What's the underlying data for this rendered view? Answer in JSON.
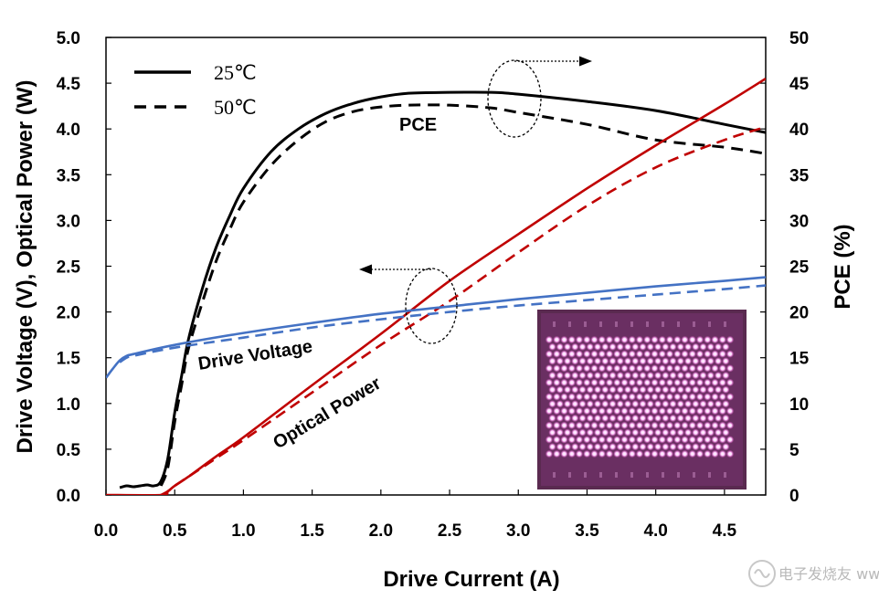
{
  "chart_data": {
    "type": "line",
    "xlabel": "Drive Current (A)",
    "ylabel_left": "Drive Voltage (V), Optical Power (W)",
    "ylabel_right": "PCE (%)",
    "xlim": [
      0,
      4.8
    ],
    "ylim_left": [
      0,
      5
    ],
    "ylim_right": [
      0,
      50
    ],
    "x_ticks": [
      "0.0",
      "0.5",
      "1.0",
      "1.5",
      "2.0",
      "2.5",
      "3.0",
      "3.5",
      "4.0",
      "4.5"
    ],
    "y_ticks_left": [
      "0.0",
      "0.5",
      "1.0",
      "1.5",
      "2.0",
      "2.5",
      "3.0",
      "3.5",
      "4.0",
      "4.5",
      "5.0"
    ],
    "y_ticks_right": [
      "0",
      "5",
      "10",
      "15",
      "20",
      "25",
      "30",
      "35",
      "40",
      "45",
      "50"
    ],
    "grid": false,
    "legend": [
      {
        "label": "25℃",
        "style": "solid"
      },
      {
        "label": "50℃",
        "style": "dashed"
      }
    ],
    "annotations": {
      "pce": "PCE",
      "voltage": "Drive Voltage",
      "power": "Optical Power"
    },
    "colors": {
      "pce": "#000000",
      "power": "#c00000",
      "voltage": "#4472c4"
    },
    "series": [
      {
        "quantity": "PCE",
        "temp": "25℃",
        "axis": "right",
        "style": "solid",
        "x": [
          0.1,
          0.15,
          0.2,
          0.25,
          0.3,
          0.35,
          0.4,
          0.45,
          0.5,
          0.55,
          0.6,
          0.7,
          0.8,
          0.9,
          1.0,
          1.2,
          1.4,
          1.6,
          1.8,
          2.0,
          2.2,
          2.5,
          2.8,
          3.0,
          3.5,
          4.0,
          4.5,
          4.8
        ],
        "y": [
          0.8,
          1.0,
          0.9,
          1.0,
          1.1,
          1.0,
          1.5,
          4.0,
          9.0,
          13.0,
          17.0,
          22.5,
          27.0,
          30.5,
          33.5,
          37.5,
          40.0,
          41.7,
          42.8,
          43.5,
          43.9,
          44.0,
          44.0,
          43.8,
          43.0,
          42.0,
          40.5,
          39.6
        ]
      },
      {
        "quantity": "PCE",
        "temp": "50℃",
        "axis": "right",
        "style": "dashed",
        "x": [
          0.4,
          0.45,
          0.5,
          0.55,
          0.6,
          0.7,
          0.8,
          0.9,
          1.0,
          1.2,
          1.4,
          1.6,
          1.8,
          2.0,
          2.2,
          2.5,
          2.8,
          3.0,
          3.5,
          4.0,
          4.5,
          4.8
        ],
        "y": [
          1.0,
          3.0,
          8.0,
          12.0,
          16.0,
          21.0,
          25.5,
          29.0,
          32.0,
          36.0,
          38.8,
          40.8,
          41.9,
          42.4,
          42.6,
          42.6,
          42.3,
          41.8,
          40.5,
          38.8,
          38.0,
          37.3
        ]
      },
      {
        "quantity": "Optical Power",
        "temp": "25℃",
        "axis": "left",
        "style": "solid",
        "x": [
          0,
          0.4,
          0.45,
          0.5,
          0.6,
          0.8,
          1.0,
          1.5,
          2.0,
          2.5,
          3.0,
          3.5,
          4.0,
          4.5,
          4.8
        ],
        "y": [
          0,
          0,
          0.04,
          0.1,
          0.2,
          0.42,
          0.63,
          1.2,
          1.76,
          2.34,
          2.85,
          3.35,
          3.82,
          4.27,
          4.55
        ]
      },
      {
        "quantity": "Optical Power",
        "temp": "50℃",
        "axis": "left",
        "style": "dashed",
        "x": [
          0.4,
          0.45,
          0.5,
          0.6,
          0.8,
          1.0,
          1.5,
          2.0,
          2.5,
          3.0,
          3.5,
          4.0,
          4.5,
          4.8
        ],
        "y": [
          0,
          0.04,
          0.1,
          0.2,
          0.4,
          0.6,
          1.12,
          1.64,
          2.12,
          2.65,
          3.16,
          3.58,
          3.88,
          4.02
        ]
      },
      {
        "quantity": "Drive Voltage",
        "temp": "25℃",
        "axis": "left",
        "style": "solid",
        "x": [
          0,
          0.05,
          0.1,
          0.15,
          0.2,
          0.5,
          1.0,
          1.5,
          2.0,
          2.5,
          3.0,
          3.5,
          4.0,
          4.5,
          4.8
        ],
        "y": [
          1.28,
          1.38,
          1.47,
          1.52,
          1.54,
          1.64,
          1.77,
          1.88,
          1.98,
          2.06,
          2.14,
          2.21,
          2.28,
          2.34,
          2.38
        ]
      },
      {
        "quantity": "Drive Voltage",
        "temp": "50℃",
        "axis": "left",
        "style": "dashed",
        "x": [
          0.1,
          0.15,
          0.2,
          0.5,
          1.0,
          1.5,
          2.0,
          2.5,
          3.0,
          3.5,
          4.0,
          4.5,
          4.8
        ],
        "y": [
          1.45,
          1.5,
          1.52,
          1.61,
          1.72,
          1.83,
          1.92,
          2.0,
          2.07,
          2.13,
          2.19,
          2.25,
          2.29
        ]
      }
    ]
  },
  "watermark": "电子发烧友 www.elecfans.com"
}
